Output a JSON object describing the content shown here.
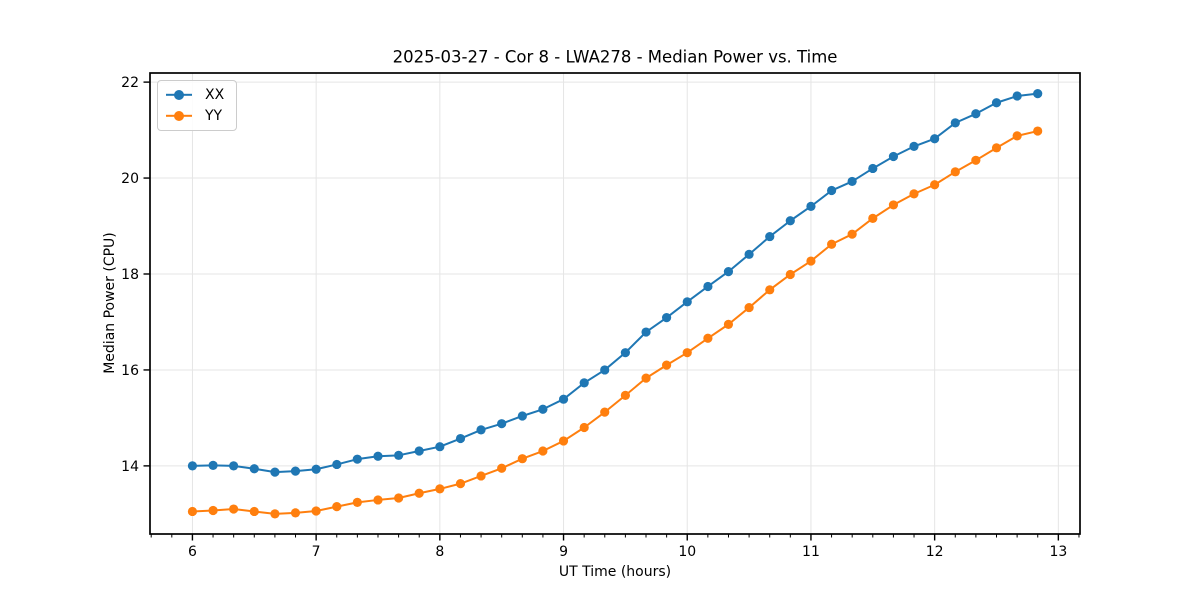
{
  "chart_data": {
    "type": "line",
    "title": "2025-03-27 - Cor 8 - LWA278 - Median Power vs. Time",
    "xlabel": "UT Time (hours)",
    "ylabel": "Median Power (CPU)",
    "xlim": [
      5.657,
      13.175
    ],
    "ylim": [
      12.58,
      22.19
    ],
    "xticks": [
      6,
      7,
      8,
      9,
      10,
      11,
      12,
      13
    ],
    "yticks": [
      14,
      16,
      18,
      20,
      22
    ],
    "x_minor_tick_step_hours": 0.1667,
    "grid": true,
    "grid_color": "#e5e5e5",
    "spine_color": "#000000",
    "legend_position": "upper-left",
    "x": [
      6.0,
      6.167,
      6.333,
      6.5,
      6.667,
      6.833,
      7.0,
      7.167,
      7.333,
      7.5,
      7.667,
      7.833,
      8.0,
      8.167,
      8.333,
      8.5,
      8.667,
      8.833,
      9.0,
      9.167,
      9.333,
      9.5,
      9.667,
      9.833,
      10.0,
      10.167,
      10.333,
      10.5,
      10.667,
      10.833,
      11.0,
      11.167,
      11.333,
      11.5,
      11.667,
      11.833,
      12.0,
      12.167,
      12.333,
      12.5,
      12.667,
      12.833
    ],
    "series": [
      {
        "name": "XX",
        "color": "#1f77b4",
        "values": [
          14.0,
          14.01,
          14.0,
          13.94,
          13.87,
          13.89,
          13.93,
          14.03,
          14.14,
          14.2,
          14.22,
          14.31,
          14.4,
          14.57,
          14.75,
          14.88,
          15.04,
          15.18,
          15.39,
          15.73,
          16.0,
          16.36,
          16.79,
          17.09,
          17.42,
          17.74,
          18.05,
          18.41,
          18.78,
          19.11,
          19.41,
          19.74,
          19.93,
          20.2,
          20.45,
          20.66,
          20.82,
          21.15,
          21.34,
          21.57,
          21.71,
          21.76
        ]
      },
      {
        "name": "YY",
        "color": "#ff7f0e",
        "values": [
          13.05,
          13.07,
          13.1,
          13.05,
          13.0,
          13.02,
          13.06,
          13.15,
          13.24,
          13.29,
          13.33,
          13.43,
          13.52,
          13.63,
          13.79,
          13.95,
          14.15,
          14.31,
          14.52,
          14.8,
          15.12,
          15.47,
          15.83,
          16.1,
          16.36,
          16.66,
          16.95,
          17.3,
          17.67,
          17.99,
          18.27,
          18.62,
          18.83,
          19.16,
          19.44,
          19.67,
          19.86,
          20.13,
          20.37,
          20.63,
          20.88,
          20.98
        ]
      }
    ]
  }
}
